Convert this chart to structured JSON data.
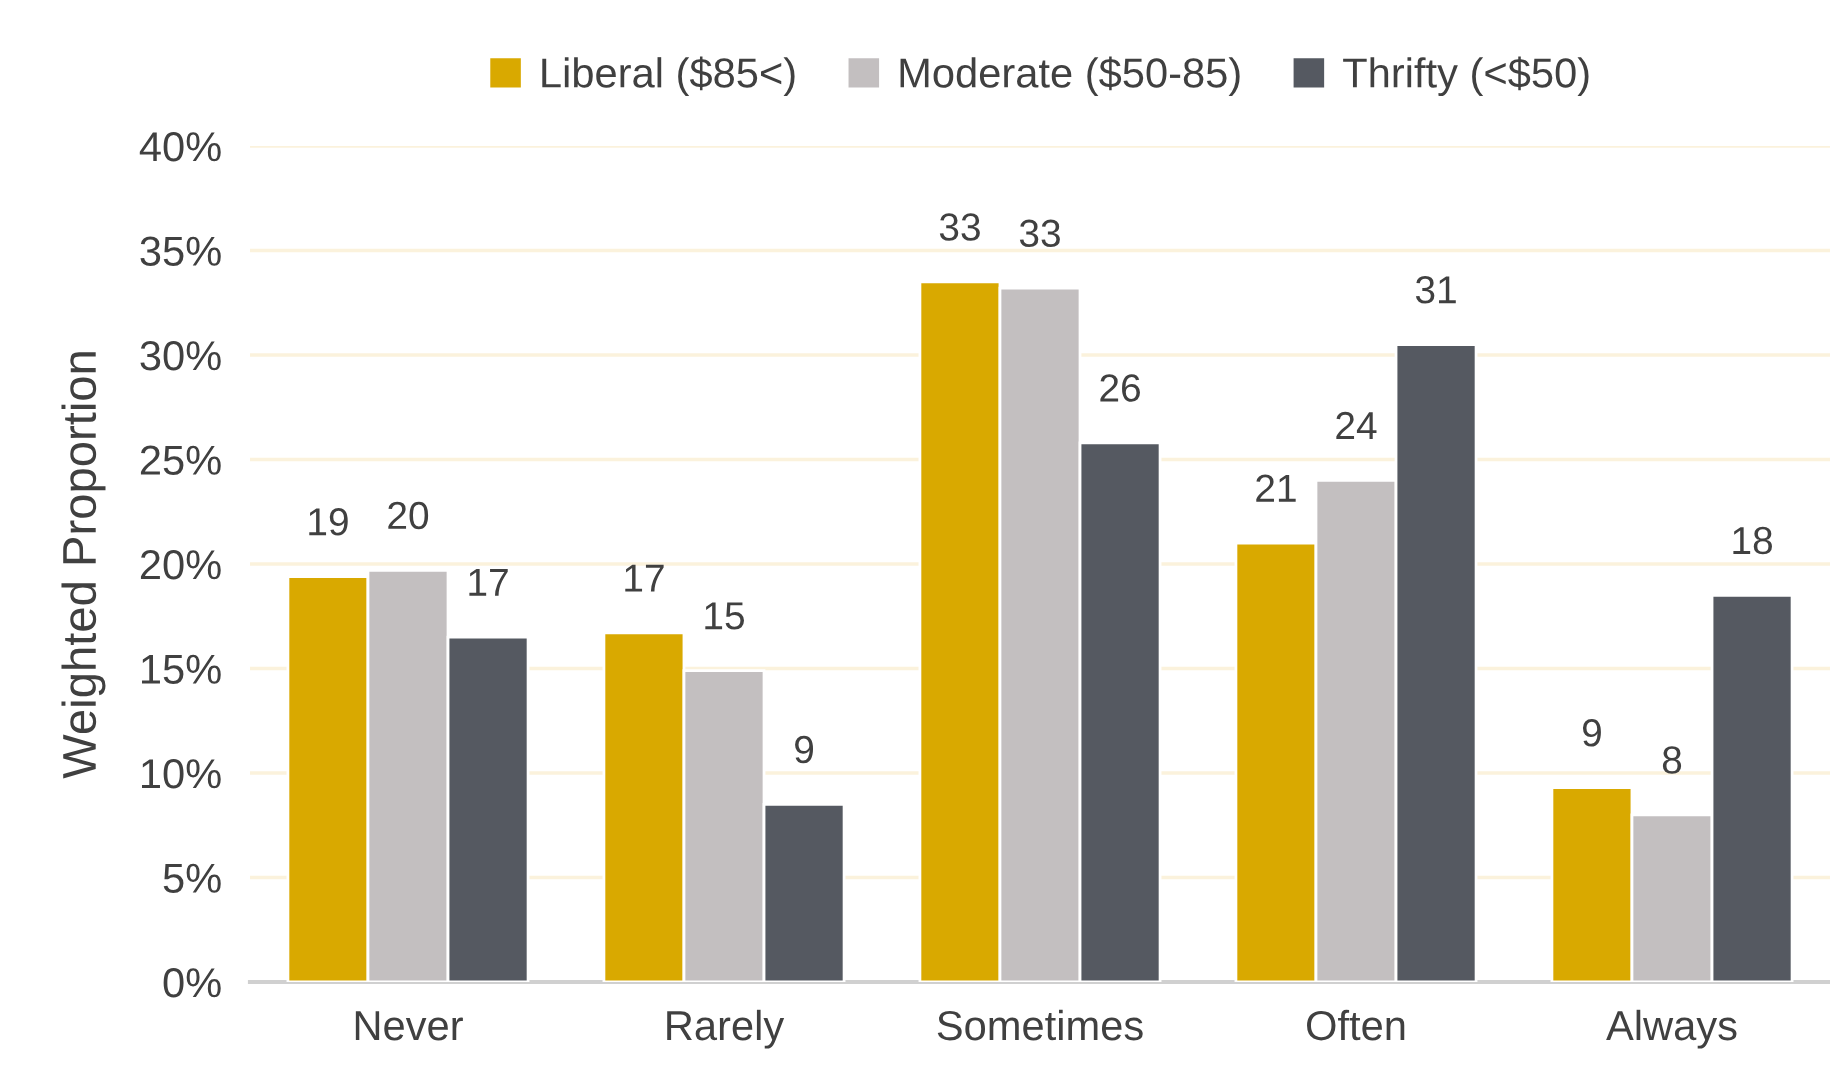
{
  "chart_data": {
    "type": "bar",
    "ylabel": "Weighted Proportion",
    "categories": [
      "Never",
      "Rarely",
      "Sometimes",
      "Often",
      "Always"
    ],
    "series": [
      {
        "name": "Liberal ($85<)",
        "color": "#d9a900",
        "values": [
          19.4,
          16.7,
          33.5,
          21.0,
          9.3
        ],
        "value_labels": [
          "19",
          "17",
          "33",
          "21",
          "9"
        ]
      },
      {
        "name": "Moderate ($50-85)",
        "color": "#c3bfc0",
        "values": [
          19.7,
          14.9,
          33.2,
          24.0,
          8.0
        ],
        "value_labels": [
          "20",
          "15",
          "33",
          "24",
          "8"
        ]
      },
      {
        "name": "Thrifty (<$50)",
        "color": "#555961",
        "values": [
          16.5,
          8.5,
          25.8,
          30.5,
          18.5
        ],
        "value_labels": [
          "17",
          "9",
          "26",
          "31",
          "18"
        ]
      }
    ],
    "ylim": [
      0,
      40
    ],
    "yticks": [
      {
        "value": 0,
        "label": "0%"
      },
      {
        "value": 5,
        "label": "5%"
      },
      {
        "value": 10,
        "label": "10%"
      },
      {
        "value": 15,
        "label": "15%"
      },
      {
        "value": 20,
        "label": "20%"
      },
      {
        "value": 25,
        "label": "25%"
      },
      {
        "value": 30,
        "label": "30%"
      },
      {
        "value": 35,
        "label": "35%"
      },
      {
        "value": 40,
        "label": "40%"
      }
    ],
    "grid": "y",
    "legend": "top"
  }
}
